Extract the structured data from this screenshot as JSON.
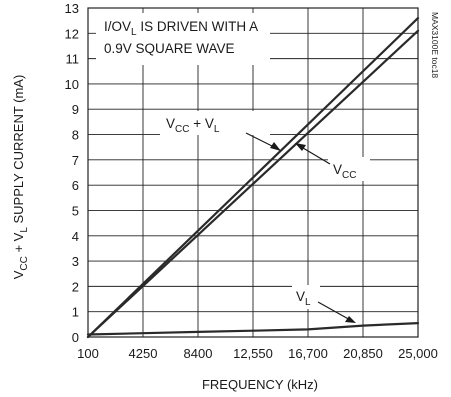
{
  "chart_data": {
    "type": "line",
    "title": "",
    "xlabel": "FREQUENCY (kHz)",
    "ylabel": {
      "parts": [
        "V",
        "CC",
        " + V",
        "L",
        " SUPPLY CURRENT (mA)"
      ]
    },
    "xlim": [
      100,
      25000
    ],
    "ylim": [
      0,
      13
    ],
    "x_ticks": [
      100,
      4250,
      8400,
      12550,
      16700,
      20850,
      25000
    ],
    "x_tick_labels": [
      "100",
      "4250",
      "8400",
      "12,550",
      "16,700",
      "20,850",
      "25,000"
    ],
    "y_ticks": [
      0,
      1,
      2,
      3,
      4,
      5,
      6,
      7,
      8,
      9,
      10,
      11,
      12,
      13
    ],
    "y_tick_labels": [
      "0",
      "1",
      "2",
      "3",
      "4",
      "5",
      "6",
      "7",
      "8",
      "9",
      "10",
      "11",
      "12",
      "13"
    ],
    "grid": true,
    "legend": "none",
    "series": [
      {
        "name": "VCC + VL",
        "x": [
          100,
          25000
        ],
        "y": [
          0.0,
          12.6
        ]
      },
      {
        "name": "VCC",
        "x": [
          100,
          25000
        ],
        "y": [
          0.0,
          12.1
        ]
      },
      {
        "name": "VL",
        "x": [
          100,
          4250,
          8400,
          12550,
          16700,
          20850,
          25000
        ],
        "y": [
          0.1,
          0.15,
          0.2,
          0.25,
          0.3,
          0.45,
          0.55
        ]
      }
    ],
    "annotations": {
      "condition": {
        "line1": [
          "I/OV",
          "L",
          " IS DRIVEN WITH A"
        ],
        "line2": "0.9V SQUARE WAVE"
      },
      "vcc_plus_vl": [
        "V",
        "CC",
        " + V",
        "L"
      ],
      "vcc": [
        "V",
        "CC"
      ],
      "vl": [
        "V",
        "L"
      ]
    },
    "figure_id": "MAX3100E toc18"
  }
}
